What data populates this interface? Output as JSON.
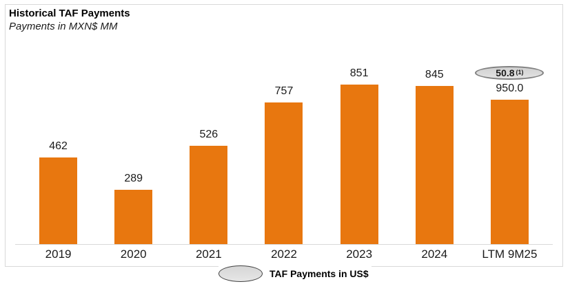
{
  "header": {
    "title": "Historical TAF Payments",
    "subtitle": "Payments in MXN$ MM"
  },
  "chart_data": {
    "type": "bar",
    "title": "Historical TAF Payments",
    "subtitle": "Payments in MXN$ MM",
    "categories": [
      "2019",
      "2020",
      "2021",
      "2022",
      "2023",
      "2024",
      "LTM 9M25"
    ],
    "values": [
      462,
      289,
      526,
      757,
      851,
      845,
      950
    ],
    "value_labels": [
      "462",
      "289",
      "526",
      "757",
      "851",
      "845",
      "950.0"
    ],
    "ylim": [
      0,
      950
    ],
    "grid": false,
    "bar_color": "#e8770f",
    "annotation": {
      "value": "50.8",
      "footnote": "(1)",
      "applies_to": "LTM 9M25",
      "meaning": "TAF Payments in US$"
    },
    "legend": {
      "label": "TAF Payments in US$",
      "position": "bottom-center",
      "marker": "gray-oval"
    }
  },
  "colors": {
    "bar": "#e8770f",
    "panel_border": "#d9d9d9",
    "axis_line": "#d9d9d9",
    "badge_fill": "#d9d9d9",
    "badge_border": "#808080"
  }
}
